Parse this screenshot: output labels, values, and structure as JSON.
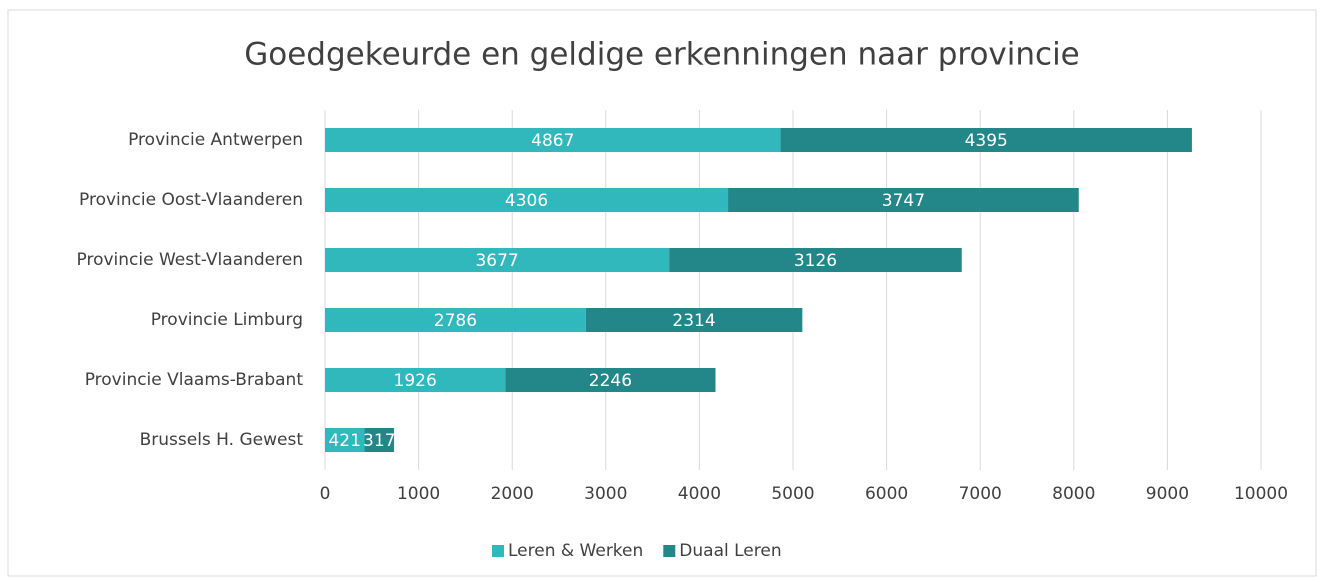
{
  "chart_data": {
    "type": "bar",
    "orientation": "horizontal",
    "stacked": true,
    "title": "Goedgekeurde en geldige erkenningen naar provincie",
    "categories": [
      "Provincie Antwerpen",
      "Provincie Oost-Vlaanderen",
      "Provincie West-Vlaanderen",
      "Provincie Limburg",
      "Provincie Vlaams-Brabant",
      "Brussels H. Gewest"
    ],
    "series": [
      {
        "name": "Leren & Werken",
        "color": "#31b8bd",
        "values": [
          4867,
          4306,
          3677,
          2786,
          1926,
          421
        ]
      },
      {
        "name": "Duaal Leren",
        "color": "#23878a",
        "values": [
          4395,
          3747,
          3126,
          2314,
          2246,
          317
        ]
      }
    ],
    "xlim": [
      0,
      10000
    ],
    "xticks": [
      0,
      1000,
      2000,
      3000,
      4000,
      5000,
      6000,
      7000,
      8000,
      9000,
      10000
    ],
    "grid": true,
    "legend": "bottom",
    "data_labels": true
  }
}
